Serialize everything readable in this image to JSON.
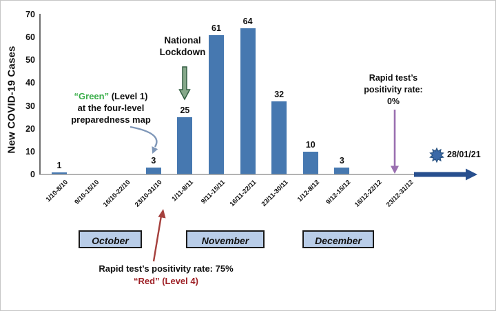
{
  "colors": {
    "bar": "#4678b0",
    "month-box-fill": "#b9cde8",
    "month-box-border": "#1a1a1a",
    "green-text": "#3aae4a",
    "dark-red-text": "#9e2026",
    "red-arrow": "#a5403d",
    "purple-arrow": "#9a6fb0",
    "navy-arrow": "#274f8e",
    "badge-blue": "#3a69a8",
    "green-arrow-fill": "#86a88a",
    "green-arrow-stroke": "#355f44",
    "curved-arrow": "#7f97b8"
  },
  "chart_data": {
    "type": "bar",
    "title": "",
    "xlabel": "",
    "ylabel": "New COVID-19 Cases",
    "ylim": [
      0,
      70
    ],
    "yticks": [
      0,
      10,
      20,
      30,
      40,
      50,
      60,
      70
    ],
    "grid": false,
    "legend": false,
    "categories": [
      "1/10-8/10",
      "9/10-15/10",
      "16/10-22/10",
      "23/10-31/10",
      "1/11-8/11",
      "9/11-15/11",
      "16/11-22/11",
      "23/11-30/11",
      "1/12-8/12",
      "9/12-15/12",
      "16/12-22/12",
      "23/12-31/12"
    ],
    "values": [
      1,
      0,
      0,
      3,
      25,
      61,
      64,
      32,
      10,
      3,
      0,
      0
    ],
    "bar_color": "#4678b0"
  },
  "months": [
    {
      "label": "October"
    },
    {
      "label": "November"
    },
    {
      "label": "December"
    }
  ],
  "annotations": {
    "green_level": {
      "highlight": "“Green”",
      "rest": " (Level 1)",
      "line2": "at the four-level",
      "line3": "preparedness map"
    },
    "lockdown": "National Lockdown",
    "rapid_zero": "Rapid test’s positivity rate: 0%",
    "rapid_75": "Rapid test’s positivity rate: 75%",
    "red_level": "“Red” (Level 4)",
    "timeline_date": "28/01/21"
  }
}
